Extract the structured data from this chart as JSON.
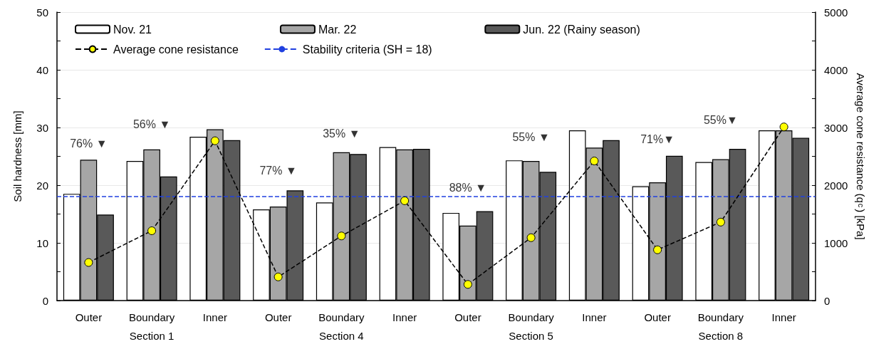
{
  "chart_data": {
    "type": "bar",
    "ylabel": "Soil hardness [mm]",
    "y2label": "Average cone resistance (q$_{c}$) [kPa]",
    "categories": [
      "Outer",
      "Boundary\nSection 1",
      "Inner",
      "Outer",
      "Boundary\nSection 4",
      "Inner",
      "Outer",
      "Boundary\nSection 5",
      "Inner",
      "Outer",
      "Boundary\nSection 8",
      "Inner"
    ],
    "series": [
      {
        "name": "Nov. 21",
        "color": "#ffffff",
        "values": [
          18.5,
          24.2,
          28.4,
          15.8,
          17.0,
          26.6,
          15.2,
          24.3,
          29.5,
          19.8,
          24.0,
          29.5
        ]
      },
      {
        "name": "Mar. 22",
        "color": "#a6a6a6",
        "values": [
          24.4,
          26.2,
          29.7,
          16.3,
          25.7,
          26.2,
          13.0,
          24.2,
          26.5,
          20.5,
          24.5,
          29.5
        ]
      },
      {
        "name": "Jun. 22 (Rainy season)",
        "color": "#595959",
        "values": [
          14.9,
          21.5,
          27.8,
          19.1,
          25.4,
          26.3,
          15.5,
          22.3,
          27.8,
          25.1,
          26.3,
          28.2
        ]
      },
      {
        "name": "Average cone resistance",
        "type": "line",
        "axis": "y2",
        "color": "#000000",
        "colors": [
          "#ffff00",
          "#ffff00",
          "#ffff00",
          "#ffff00",
          "#ffff00",
          "#ffff00",
          "#ffff00",
          "#ffff00",
          "#ffff00",
          "#ffff00",
          "#ffff00",
          "#ffff00"
        ],
        "marker": "circle",
        "line_style": "dashed",
        "values": [
          660,
          1210,
          2770,
          410,
          1120,
          1730,
          280,
          1090,
          2420,
          880,
          1360,
          3010
        ]
      }
    ],
    "ref_lines": [
      {
        "axis": "y",
        "value": 18,
        "label": "Stability criteria (SH = 18)",
        "color": "#2040e0",
        "line_style": "dashed"
      }
    ],
    "annotations": [
      "76% ▼",
      "56% ▼",
      "77% ▼",
      "35% ▼",
      "88% ▼",
      "55% ▼",
      "71%▼",
      "55%▼"
    ],
    "ylim": [
      0,
      50
    ],
    "yticks": [
      0,
      {
        "value": 5,
        "label": null
      },
      10,
      {
        "value": 15,
        "label": null
      },
      20,
      {
        "value": 25,
        "label": null
      },
      30,
      {
        "value": 35,
        "label": null
      },
      40,
      {
        "value": 45,
        "label": null
      },
      50
    ],
    "y2lim": [
      0,
      5000
    ],
    "y2ticks": [
      0,
      {
        "value": 500,
        "label": null
      },
      1000,
      {
        "value": 1500,
        "label": null
      },
      2000,
      {
        "value": 2500,
        "label": null
      },
      3000,
      {
        "value": 3500,
        "label": null
      },
      4000,
      {
        "value": 4500,
        "label": null
      },
      5000
    ],
    "grid": "y",
    "legend": "top left"
  }
}
